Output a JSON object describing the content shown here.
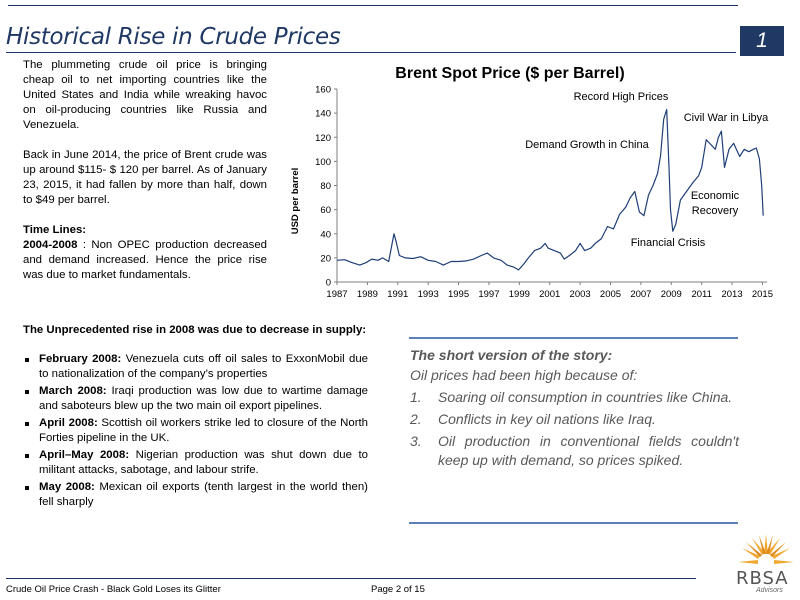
{
  "header": {
    "title": "Historical Rise in Crude Prices",
    "page_badge": "1"
  },
  "intro": {
    "p1": "The plummeting crude oil price is bringing cheap oil  to net importing countries like the United States and India while wreaking havoc on oil-producing countries like Russia and Venezuela.",
    "p2": "Back in June 2014, the price of Brent crude was up around $115- $ 120 per barrel. As of January 23, 2015, it had fallen by more than half, down to $49 per barrel.",
    "timelines_label": "Time Lines:",
    "timeline_period": "2004-2008",
    "timeline_text": " : Non OPEC production decreased and demand increased. Hence the price rise was due to market fundamentals."
  },
  "supply": {
    "heading": "The Unprecedented rise in 2008 was due to decrease in supply:",
    "events": [
      {
        "date": "February 2008:",
        "text": "  Venezuela cuts off oil sales to ExxonMobil due to  nationalization of the company’s properties"
      },
      {
        "date": "March 2008:",
        "text": " Iraqi production was low due to wartime damage and saboteurs blew up the two main oil export pipelines."
      },
      {
        "date": "April 2008:",
        "text": " Scottish oil workers strike led to closure of the North Forties pipeline in the UK."
      },
      {
        "date": "April–May 2008:",
        "text": " Nigerian production was shut down due to militant attacks, sabotage, and labour strife."
      },
      {
        "date": "May 2008:",
        "text": " Mexican oil exports (tenth largest in the world then) fell sharply"
      }
    ]
  },
  "story": {
    "heading": "The short version of the story:",
    "lead": "Oil prices had been high because of:",
    "reasons": [
      {
        "num": "1.",
        "text": "Soaring oil consumption in countries like China."
      },
      {
        "num": "2.",
        "text": "Conflicts in key oil nations like Iraq."
      },
      {
        "num": "3.",
        "text": "Oil production in conventional fields couldn't keep up with demand, so prices spiked."
      }
    ]
  },
  "chart_data": {
    "type": "line",
    "title": "Brent Spot Price ($ per Barrel)",
    "xlabel": "",
    "ylabel": "USD per barrel",
    "xlim": [
      1987,
      2015.3
    ],
    "ylim": [
      0,
      160
    ],
    "yticks": [
      0,
      20,
      40,
      60,
      80,
      100,
      120,
      140,
      160
    ],
    "xticks": [
      "1987",
      "1989",
      "1991",
      "1993",
      "1995",
      "1997",
      "1999",
      "2001",
      "2003",
      "2005",
      "2007",
      "2009",
      "2011",
      "2013",
      "2015"
    ],
    "grid": false,
    "color": "#1f3f77",
    "series": [
      {
        "x": [
          1987.0,
          1987.5,
          1988.0,
          1988.5,
          1988.9,
          1989.3,
          1989.7,
          1990.0,
          1990.4,
          1990.6,
          1990.75,
          1990.9,
          1991.1,
          1991.5,
          1992.0,
          1992.5,
          1993.0,
          1993.5,
          1994.0,
          1994.5,
          1995.0,
          1995.5,
          1996.0,
          1996.5,
          1996.9,
          1997.3,
          1997.8,
          1998.2,
          1998.6,
          1998.95,
          1999.3,
          1999.6,
          2000.0,
          2000.4,
          2000.7,
          2000.9,
          2001.3,
          2001.7,
          2001.95,
          2002.3,
          2002.7,
          2003.0,
          2003.3,
          2003.7,
          2004.0,
          2004.4,
          2004.8,
          2005.2,
          2005.6,
          2006.0,
          2006.3,
          2006.6,
          2006.9,
          2007.2,
          2007.5,
          2007.8,
          2008.1,
          2008.3,
          2008.5,
          2008.7,
          2008.85,
          2008.95,
          2009.1,
          2009.3,
          2009.6,
          2010.0,
          2010.4,
          2010.8,
          2011.0,
          2011.3,
          2011.6,
          2011.9,
          2012.1,
          2012.3,
          2012.5,
          2012.8,
          2013.1,
          2013.5,
          2013.8,
          2014.1,
          2014.4,
          2014.6,
          2014.8,
          2014.95,
          2015.05
        ],
        "values": [
          18,
          18.5,
          16,
          14,
          16,
          19,
          18,
          20,
          17,
          30,
          40,
          33,
          22,
          20,
          19.5,
          21,
          18,
          17,
          14,
          17,
          17,
          17.5,
          19,
          22,
          24,
          20,
          18,
          14,
          12.5,
          10,
          15,
          20,
          26,
          28,
          32,
          28,
          26,
          24,
          19,
          22,
          26,
          32,
          26,
          28,
          32,
          36,
          46,
          44,
          56,
          62,
          70,
          75,
          58,
          55,
          72,
          80,
          90,
          105,
          135,
          143,
          95,
          60,
          42,
          48,
          68,
          75,
          82,
          88,
          95,
          118,
          114,
          110,
          120,
          125,
          95,
          110,
          115,
          104,
          110,
          108,
          110,
          111,
          102,
          80,
          55
        ]
      }
    ],
    "annotations": [
      "Record High Prices",
      "Civil War in Libya",
      "Demand Growth in China",
      "Economic Recovery",
      "Financial Crisis"
    ]
  },
  "footer": {
    "doc_title": "Crude Oil Price Crash - Black Gold Loses its Glitter",
    "page": "Page 2 of 15"
  },
  "logo": {
    "name": "RBSA",
    "tagline": "Advisors"
  }
}
